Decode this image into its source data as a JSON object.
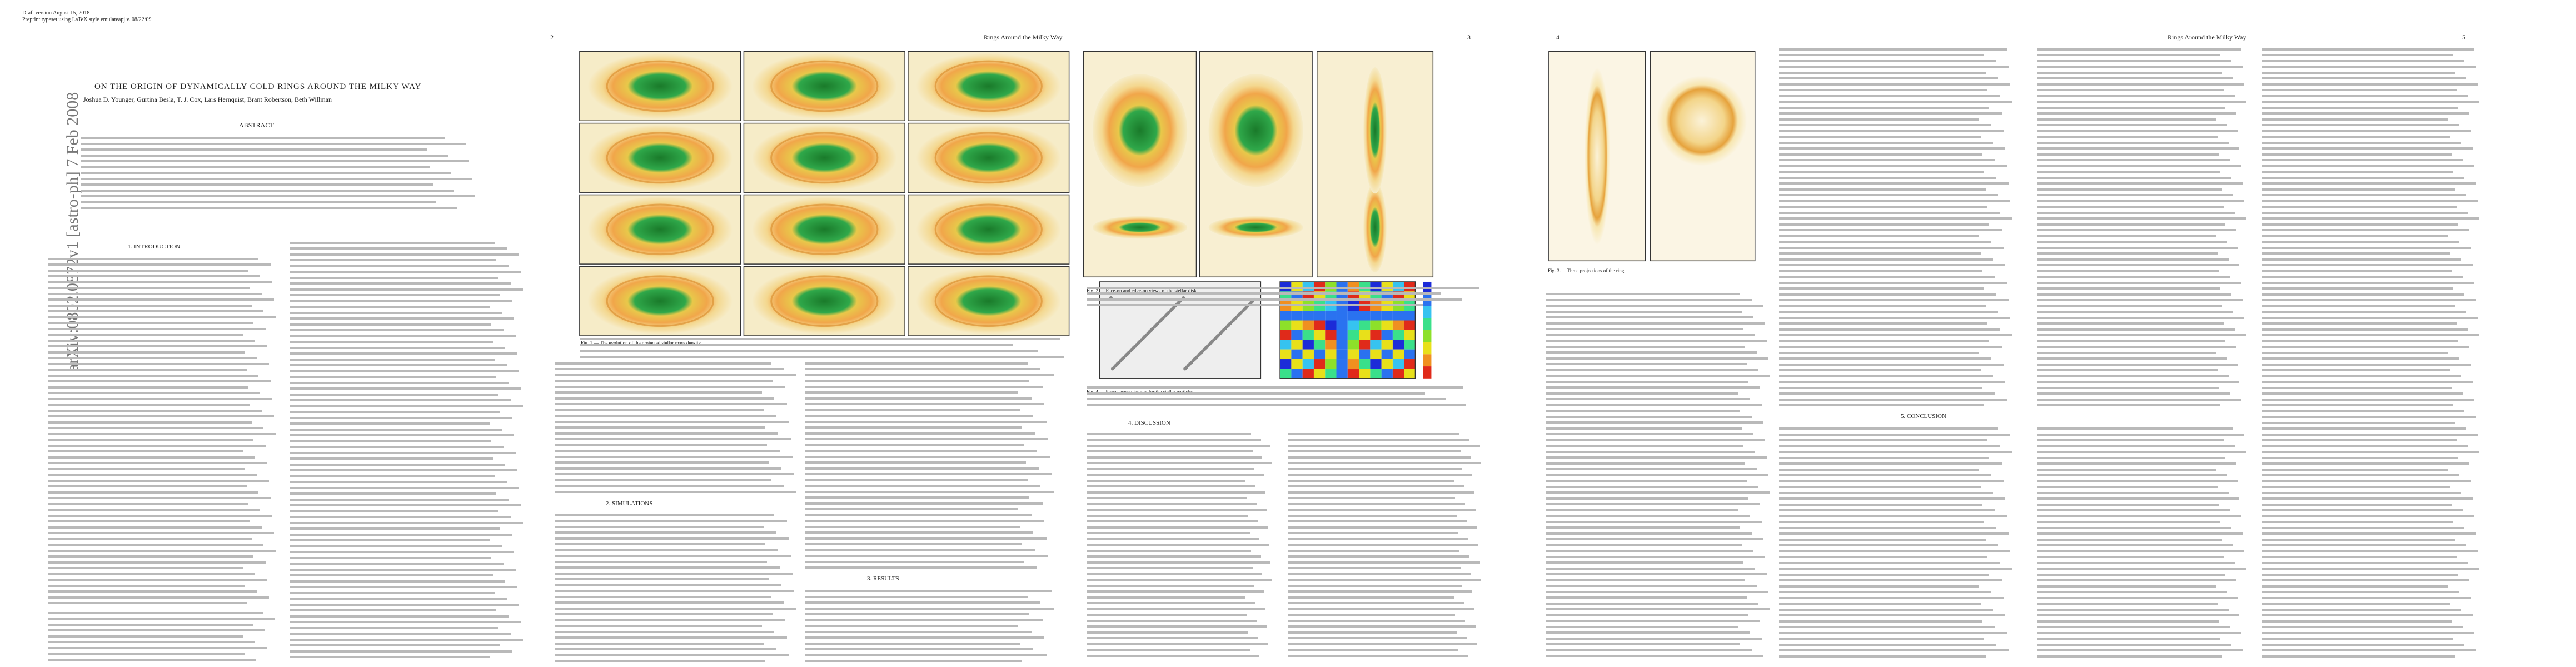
{
  "header": {
    "draft": "Draft version August 15, 2018",
    "preprint": "Preprint typeset using LaTeX style emulateapj v. 08/22/09"
  },
  "arxiv": "arXiv:0802.0872v1  [astro-ph]  7 Feb 2008",
  "title": "ON THE ORIGIN OF DYNAMICALLY COLD RINGS AROUND THE MILKY WAY",
  "authors": "Joshua D. Younger, Gurtina Besla, T. J. Cox, Lars Hernquist, Brant Robertson, Beth Willman",
  "abstract_heading": "ABSTRACT",
  "sections": [
    "1. INTRODUCTION",
    "2. SIMULATIONS",
    "3. RESULTS",
    "4. DISCUSSION",
    "5. CONCLUSION"
  ],
  "running_heads": {
    "page2": "2",
    "page3_head": "Rings Around the Milky Way",
    "page3": "3",
    "page4": "4",
    "page5_head": "Rings Around the Milky Way",
    "page5": "5"
  },
  "captions": {
    "fig1": "Fig. 1.— The evolution of the projected stellar mass density.",
    "fig2": "Fig. 2.— Face-on and edge-on views of the stellar disk.",
    "fig3": "Fig. 3.— Three projections of the ring.",
    "fig4": "Fig. 4.— Phase space diagram for the stellar particles."
  }
}
